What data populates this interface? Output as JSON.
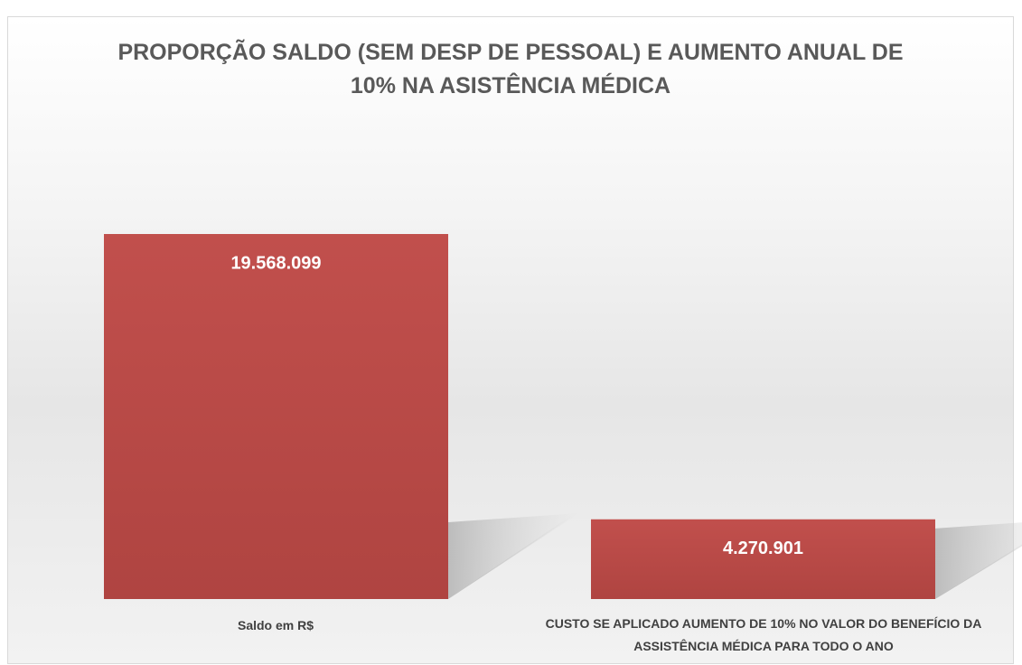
{
  "chart_data": {
    "type": "bar",
    "title": "PROPORÇÃO SALDO (SEM DESP DE PESSOAL) E AUMENTO ANUAL DE 10% NA ASISTÊNCIA MÉDICA",
    "categories": [
      "Saldo em  R$",
      "CUSTO SE APLICADO AUMENTO DE 10% NO VALOR DO BENEFÍCIO DA ASSISTÊNCIA MÉDICA PARA TODO O ANO"
    ],
    "values": [
      19568099,
      4270901
    ],
    "value_labels": [
      "19.568.099",
      "4.270.901"
    ],
    "color": "#c0504d"
  }
}
